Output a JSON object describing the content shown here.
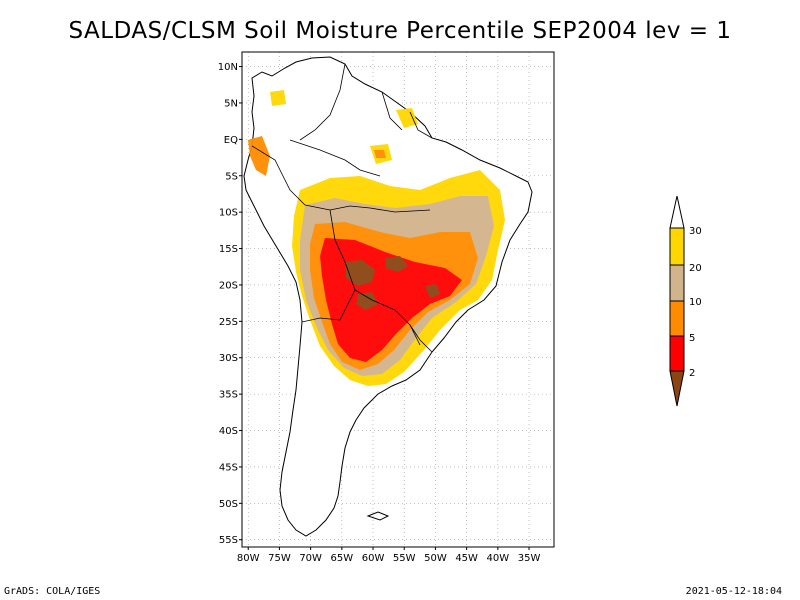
{
  "title": "SALDAS/CLSM Soil Moisture Percentile SEP2004 lev = 1",
  "footer": {
    "left": "GrADS: COLA/IGES",
    "right": "2021-05-12-18:04"
  },
  "map": {
    "lat_labels": [
      "10N",
      "5N",
      "EQ",
      "5S",
      "10S",
      "15S",
      "20S",
      "25S",
      "30S",
      "35S",
      "40S",
      "45S",
      "50S",
      "55S"
    ],
    "lon_labels": [
      "80W",
      "75W",
      "70W",
      "65W",
      "60W",
      "55W",
      "50W",
      "45W",
      "40W",
      "35W"
    ],
    "grid": true
  },
  "legend": {
    "levels": [
      "30",
      "20",
      "10",
      "5",
      "2"
    ],
    "colors": {
      "above30": "#ffffff",
      "c20_30": "#ffd700",
      "c10_20": "#d2b48c",
      "c5_10": "#ff8c00",
      "c2_5": "#ff0000",
      "below2": "#8b4513"
    }
  }
}
